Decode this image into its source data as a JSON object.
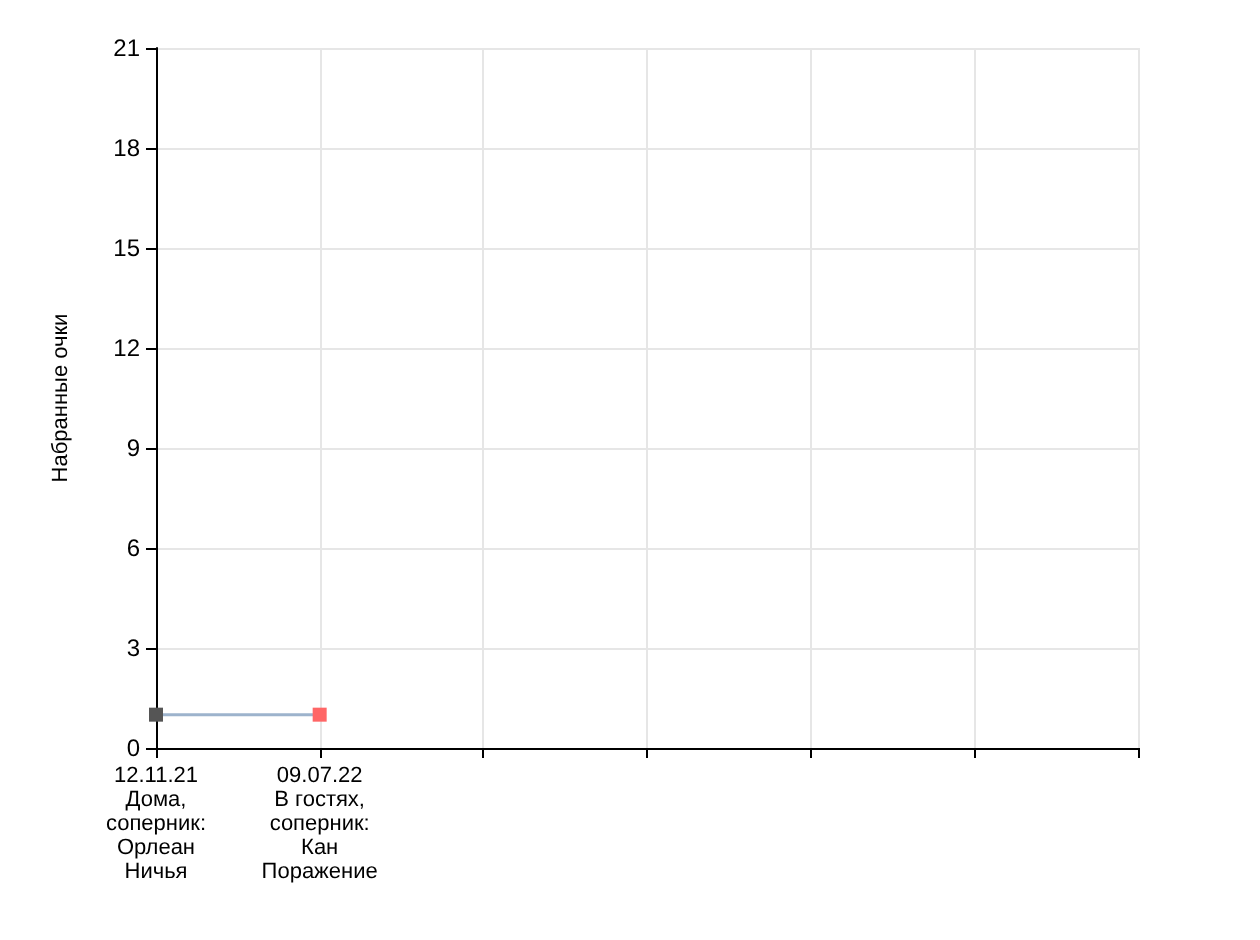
{
  "chart_data": {
    "type": "line",
    "ylabel": "Набранные очки",
    "categories": [
      "12.11.21\nДома,\nсоперник:\nОрлеан\nНичья",
      "09.07.22\nВ гостях,\nсоперник:\nКан\nПоражение",
      null,
      null,
      null,
      null,
      null
    ],
    "series": [
      {
        "color": "#9db3cc",
        "colors": [
          "#555555",
          "#ff6666",
          null,
          null,
          null,
          null,
          null
        ],
        "values": [
          1,
          1,
          null,
          null,
          null,
          null,
          null
        ]
      }
    ],
    "ylim": [
      0,
      21
    ],
    "yticks": [
      0,
      3,
      6,
      9,
      12,
      15,
      18,
      21
    ],
    "grid": true,
    "marker": "square",
    "line_style": "solid"
  }
}
